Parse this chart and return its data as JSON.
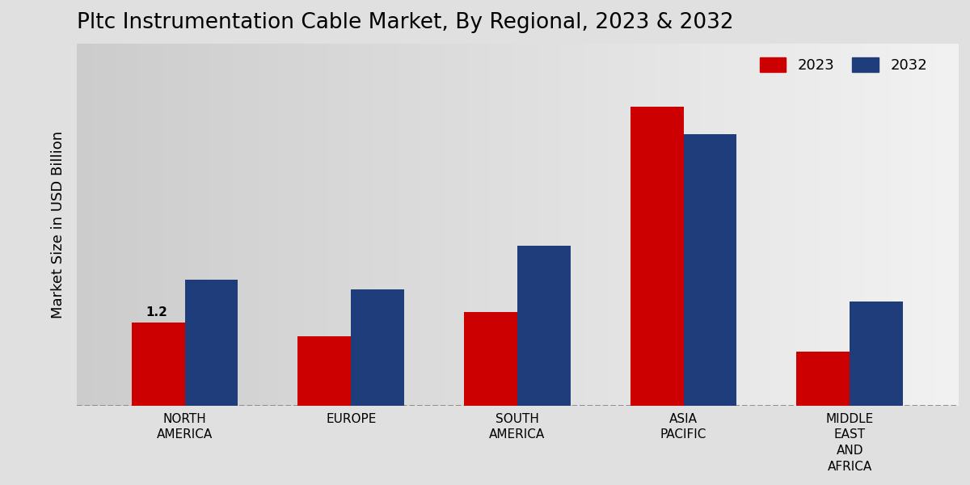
{
  "title": "Pltc Instrumentation Cable Market, By Regional, 2023 & 2032",
  "ylabel": "Market Size in USD Billion",
  "categories": [
    "NORTH\nAMERICA",
    "EUROPE",
    "SOUTH\nAMERICA",
    "ASIA\nPACIFIC",
    "MIDDLE\nEAST\nAND\nAFRICA"
  ],
  "values_2023": [
    1.2,
    1.0,
    1.35,
    4.3,
    0.78
  ],
  "values_2032": [
    1.82,
    1.68,
    2.3,
    3.9,
    1.5
  ],
  "color_2023": "#cc0000",
  "color_2032": "#1f3d7a",
  "annotation_text": "1.2",
  "annotation_region_index": 0,
  "bar_width": 0.32,
  "background_color_left": "#d0d0d0",
  "background_color_right": "#f0f0f0",
  "legend_labels": [
    "2023",
    "2032"
  ],
  "dashed_line_y": 0,
  "ylim": [
    0,
    5.2
  ],
  "title_fontsize": 19,
  "axis_label_fontsize": 13,
  "tick_fontsize": 11,
  "legend_fontsize": 13
}
